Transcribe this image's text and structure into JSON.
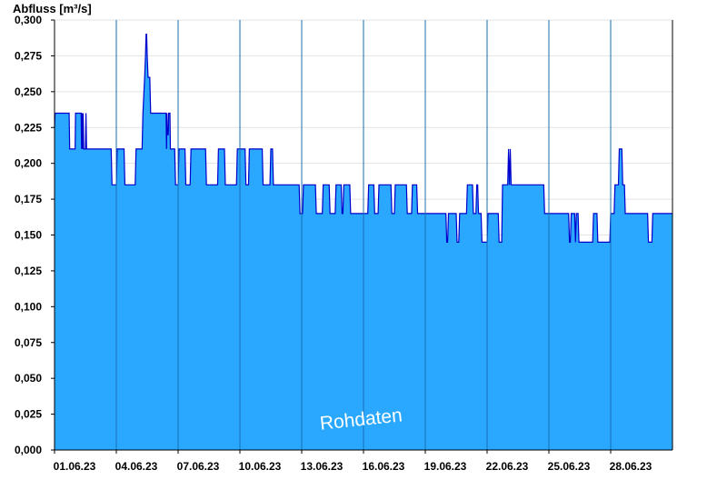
{
  "chart_data": {
    "type": "area",
    "ylabel": "Abfluss [m³/s]",
    "annotation": "Rohdaten",
    "ylim": [
      0,
      0.3
    ],
    "xlim": [
      "2023-06-01",
      "2023-06-30"
    ],
    "y_ticks": [
      "0,000",
      "0,025",
      "0,050",
      "0,075",
      "0,100",
      "0,125",
      "0,150",
      "0,175",
      "0,200",
      "0,225",
      "0,250",
      "0,275",
      "0,300"
    ],
    "x_ticks": [
      {
        "date": "2023-06-01",
        "label": "01.06.23"
      },
      {
        "date": "2023-06-04",
        "label": "04.06.23"
      },
      {
        "date": "2023-06-07",
        "label": "07.06.23"
      },
      {
        "date": "2023-06-10",
        "label": "10.06.23"
      },
      {
        "date": "2023-06-13",
        "label": "13.06.23"
      },
      {
        "date": "2023-06-16",
        "label": "16.06.23"
      },
      {
        "date": "2023-06-19",
        "label": "19.06.23"
      },
      {
        "date": "2023-06-22",
        "label": "22.06.23"
      },
      {
        "date": "2023-06-25",
        "label": "25.06.23"
      },
      {
        "date": "2023-06-28",
        "label": "28.06.23"
      }
    ],
    "grid": true,
    "colors": {
      "fill": "#2aa8ff",
      "line": "#0000cc",
      "grid": "#e3e3e3",
      "day_line": "#1a6fb0"
    },
    "series": [
      {
        "points": [
          [
            "2023-06-01 00:00",
            0.225
          ],
          [
            "2023-06-01 00:40",
            0.235
          ],
          [
            "2023-06-01 17:00",
            0.235
          ],
          [
            "2023-06-01 17:40",
            0.21
          ],
          [
            "2023-06-02 00:00",
            0.21
          ],
          [
            "2023-06-02 00:30",
            0.235
          ],
          [
            "2023-06-02 07:00",
            0.235
          ],
          [
            "2023-06-02 07:30",
            0.21
          ],
          [
            "2023-06-02 08:00",
            0.235
          ],
          [
            "2023-06-02 08:40",
            0.21
          ],
          [
            "2023-06-02 09:20",
            0.235
          ],
          [
            "2023-06-02 10:00",
            0.21
          ],
          [
            "2023-06-02 12:00",
            0.21
          ],
          [
            "2023-06-02 12:40",
            0.235
          ],
          [
            "2023-06-02 13:20",
            0.21
          ],
          [
            "2023-06-03 18:00",
            0.21
          ],
          [
            "2023-06-03 19:00",
            0.185
          ],
          [
            "2023-06-04 00:00",
            0.185
          ],
          [
            "2023-06-04 01:00",
            0.21
          ],
          [
            "2023-06-04 09:00",
            0.21
          ],
          [
            "2023-06-04 10:00",
            0.185
          ],
          [
            "2023-06-04 22:00",
            0.185
          ],
          [
            "2023-06-04 23:00",
            0.21
          ],
          [
            "2023-06-05 06:00",
            0.21
          ],
          [
            "2023-06-05 07:00",
            0.235
          ],
          [
            "2023-06-05 09:00",
            0.26
          ],
          [
            "2023-06-05 10:00",
            0.275
          ],
          [
            "2023-06-05 10:40",
            0.29
          ],
          [
            "2023-06-05 11:20",
            0.29
          ],
          [
            "2023-06-05 12:00",
            0.275
          ],
          [
            "2023-06-05 13:00",
            0.26
          ],
          [
            "2023-06-05 15:00",
            0.26
          ],
          [
            "2023-06-05 16:00",
            0.235
          ],
          [
            "2023-06-06 10:00",
            0.235
          ],
          [
            "2023-06-06 10:30",
            0.21
          ],
          [
            "2023-06-06 11:00",
            0.235
          ],
          [
            "2023-06-06 11:30",
            0.22
          ],
          [
            "2023-06-06 12:30",
            0.22
          ],
          [
            "2023-06-06 13:00",
            0.235
          ],
          [
            "2023-06-06 14:30",
            0.235
          ],
          [
            "2023-06-06 15:00",
            0.21
          ],
          [
            "2023-06-06 20:00",
            0.21
          ],
          [
            "2023-06-06 21:00",
            0.185
          ],
          [
            "2023-06-07 00:00",
            0.185
          ],
          [
            "2023-06-07 01:00",
            0.21
          ],
          [
            "2023-06-07 08:00",
            0.21
          ],
          [
            "2023-06-07 09:00",
            0.185
          ],
          [
            "2023-06-07 14:00",
            0.185
          ],
          [
            "2023-06-07 15:00",
            0.21
          ],
          [
            "2023-06-08 08:00",
            0.21
          ],
          [
            "2023-06-08 09:00",
            0.185
          ],
          [
            "2023-06-08 22:00",
            0.185
          ],
          [
            "2023-06-08 23:00",
            0.21
          ],
          [
            "2023-06-09 06:00",
            0.21
          ],
          [
            "2023-06-09 07:00",
            0.185
          ],
          [
            "2023-06-09 20:00",
            0.185
          ],
          [
            "2023-06-09 21:00",
            0.21
          ],
          [
            "2023-06-10 06:00",
            0.21
          ],
          [
            "2023-06-10 07:00",
            0.185
          ],
          [
            "2023-06-10 10:00",
            0.185
          ],
          [
            "2023-06-10 11:00",
            0.21
          ],
          [
            "2023-06-11 02:00",
            0.21
          ],
          [
            "2023-06-11 03:00",
            0.185
          ],
          [
            "2023-06-11 11:00",
            0.185
          ],
          [
            "2023-06-11 12:00",
            0.21
          ],
          [
            "2023-06-11 14:00",
            0.21
          ],
          [
            "2023-06-11 15:00",
            0.185
          ],
          [
            "2023-06-12 21:00",
            0.185
          ],
          [
            "2023-06-12 22:00",
            0.165
          ],
          [
            "2023-06-13 01:00",
            0.165
          ],
          [
            "2023-06-13 02:00",
            0.185
          ],
          [
            "2023-06-13 16:00",
            0.185
          ],
          [
            "2023-06-13 17:00",
            0.165
          ],
          [
            "2023-06-14 00:00",
            0.165
          ],
          [
            "2023-06-14 01:00",
            0.185
          ],
          [
            "2023-06-14 08:00",
            0.185
          ],
          [
            "2023-06-14 09:00",
            0.165
          ],
          [
            "2023-06-14 15:00",
            0.165
          ],
          [
            "2023-06-14 16:00",
            0.185
          ],
          [
            "2023-06-14 22:00",
            0.185
          ],
          [
            "2023-06-14 23:00",
            0.165
          ],
          [
            "2023-06-15 00:00",
            0.165
          ],
          [
            "2023-06-15 01:00",
            0.185
          ],
          [
            "2023-06-15 08:00",
            0.185
          ],
          [
            "2023-06-15 09:00",
            0.165
          ],
          [
            "2023-06-16 05:00",
            0.165
          ],
          [
            "2023-06-16 06:00",
            0.185
          ],
          [
            "2023-06-16 12:00",
            0.185
          ],
          [
            "2023-06-16 13:00",
            0.165
          ],
          [
            "2023-06-16 17:00",
            0.165
          ],
          [
            "2023-06-16 18:00",
            0.185
          ],
          [
            "2023-06-17 08:00",
            0.185
          ],
          [
            "2023-06-17 09:00",
            0.165
          ],
          [
            "2023-06-17 12:00",
            0.165
          ],
          [
            "2023-06-17 13:00",
            0.185
          ],
          [
            "2023-06-18 02:00",
            0.185
          ],
          [
            "2023-06-18 03:00",
            0.165
          ],
          [
            "2023-06-18 08:00",
            0.165
          ],
          [
            "2023-06-18 09:00",
            0.185
          ],
          [
            "2023-06-18 14:00",
            0.185
          ],
          [
            "2023-06-18 15:00",
            0.165
          ],
          [
            "2023-06-20 00:00",
            0.165
          ],
          [
            "2023-06-20 01:00",
            0.145
          ],
          [
            "2023-06-20 02:00",
            0.145
          ],
          [
            "2023-06-20 03:00",
            0.165
          ],
          [
            "2023-06-20 12:00",
            0.165
          ],
          [
            "2023-06-20 13:00",
            0.145
          ],
          [
            "2023-06-20 15:00",
            0.145
          ],
          [
            "2023-06-20 16:00",
            0.165
          ],
          [
            "2023-06-21 00:00",
            0.165
          ],
          [
            "2023-06-21 01:00",
            0.185
          ],
          [
            "2023-06-21 07:00",
            0.185
          ],
          [
            "2023-06-21 08:00",
            0.165
          ],
          [
            "2023-06-21 11:00",
            0.165
          ],
          [
            "2023-06-21 12:00",
            0.185
          ],
          [
            "2023-06-21 13:00",
            0.185
          ],
          [
            "2023-06-21 14:00",
            0.165
          ],
          [
            "2023-06-21 17:00",
            0.165
          ],
          [
            "2023-06-21 18:00",
            0.145
          ],
          [
            "2023-06-22 00:00",
            0.145
          ],
          [
            "2023-06-22 01:00",
            0.165
          ],
          [
            "2023-06-22 13:00",
            0.165
          ],
          [
            "2023-06-22 14:00",
            0.145
          ],
          [
            "2023-06-22 17:00",
            0.145
          ],
          [
            "2023-06-22 18:00",
            0.185
          ],
          [
            "2023-06-23 00:00",
            0.185
          ],
          [
            "2023-06-23 01:00",
            0.21
          ],
          [
            "2023-06-23 02:00",
            0.185
          ],
          [
            "2023-06-23 03:00",
            0.21
          ],
          [
            "2023-06-23 04:00",
            0.185
          ],
          [
            "2023-06-24 18:00",
            0.185
          ],
          [
            "2023-06-24 19:00",
            0.165
          ],
          [
            "2023-06-25 23:00",
            0.165
          ],
          [
            "2023-06-26 00:00",
            0.145
          ],
          [
            "2023-06-26 01:00",
            0.145
          ],
          [
            "2023-06-26 02:00",
            0.165
          ],
          [
            "2023-06-26 06:00",
            0.165
          ],
          [
            "2023-06-26 07:00",
            0.145
          ],
          [
            "2023-06-26 08:00",
            0.165
          ],
          [
            "2023-06-26 10:00",
            0.165
          ],
          [
            "2023-06-26 11:00",
            0.145
          ],
          [
            "2023-06-27 03:00",
            0.145
          ],
          [
            "2023-06-27 04:00",
            0.165
          ],
          [
            "2023-06-27 08:00",
            0.165
          ],
          [
            "2023-06-27 09:00",
            0.145
          ],
          [
            "2023-06-27 23:00",
            0.145
          ],
          [
            "2023-06-28 00:00",
            0.165
          ],
          [
            "2023-06-28 04:00",
            0.165
          ],
          [
            "2023-06-28 05:00",
            0.185
          ],
          [
            "2023-06-28 09:00",
            0.185
          ],
          [
            "2023-06-28 10:00",
            0.21
          ],
          [
            "2023-06-28 13:00",
            0.21
          ],
          [
            "2023-06-28 14:00",
            0.185
          ],
          [
            "2023-06-28 16:00",
            0.185
          ],
          [
            "2023-06-28 17:00",
            0.165
          ],
          [
            "2023-06-29 19:00",
            0.165
          ],
          [
            "2023-06-29 20:00",
            0.145
          ],
          [
            "2023-06-30 00:00",
            0.145
          ],
          [
            "2023-06-30 01:00",
            0.165
          ],
          [
            "2023-06-30 23:59",
            0.165
          ]
        ]
      }
    ]
  }
}
